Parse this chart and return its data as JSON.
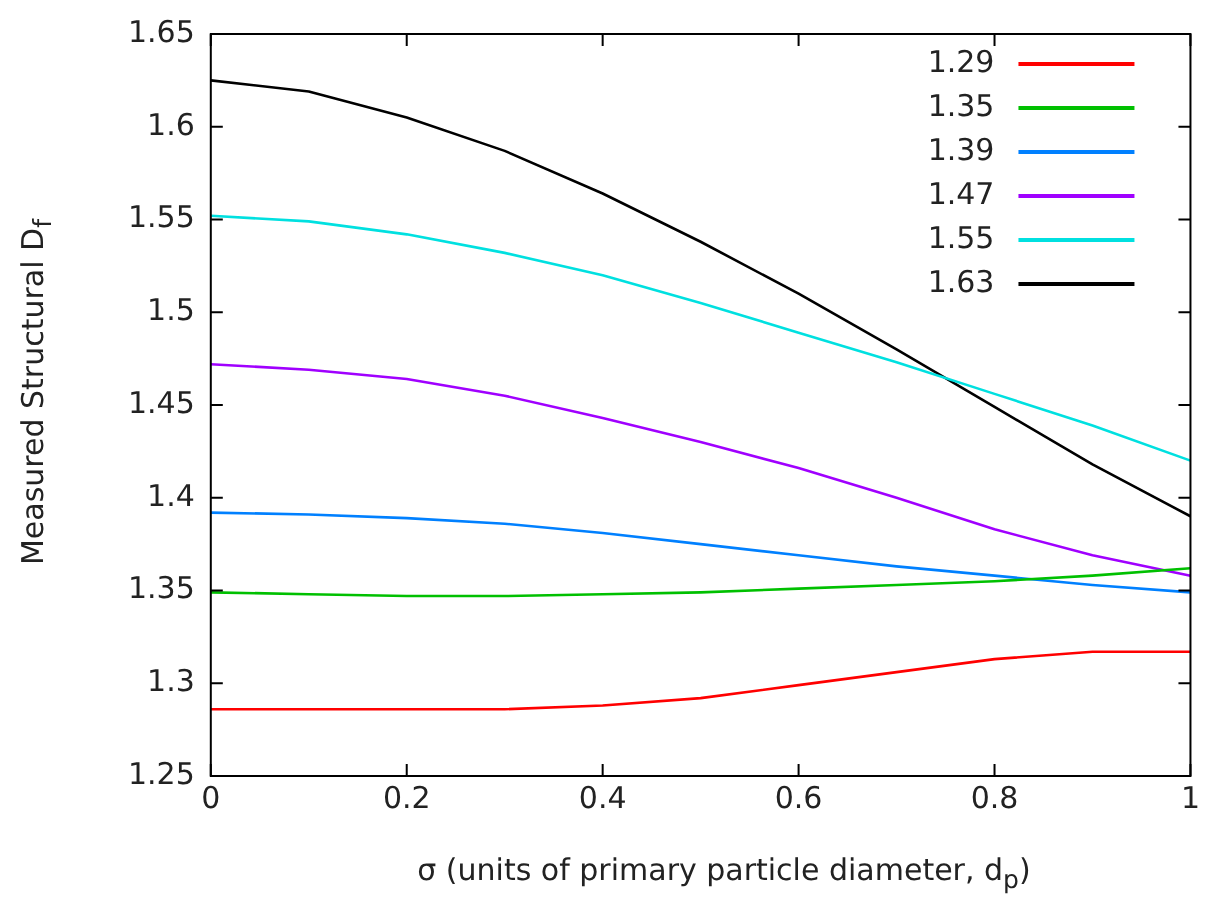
{
  "chart_data": {
    "type": "line",
    "xlabel": "σ (units of primary particle diameter, d$_{p}$)",
    "ylabel": "Measured Structural D$_{f}$",
    "x": [
      0,
      0.1,
      0.2,
      0.3,
      0.4,
      0.5,
      0.6,
      0.7,
      0.8,
      0.9,
      1
    ],
    "xlim": [
      0,
      1
    ],
    "xticks": [
      0,
      0.2,
      0.4,
      0.6,
      0.8,
      1
    ],
    "ylim": [
      1.25,
      1.65
    ],
    "yticks": [
      1.25,
      1.3,
      1.35,
      1.4,
      1.45,
      1.5,
      1.55,
      1.6,
      1.65
    ],
    "grid": false,
    "legend": "top right",
    "marker": "none",
    "line_style": "solid",
    "series": [
      {
        "name": "1.29",
        "color": "#ff0000",
        "values": [
          1.286,
          1.286,
          1.286,
          1.286,
          1.288,
          1.292,
          1.299,
          1.306,
          1.313,
          1.317,
          1.317
        ]
      },
      {
        "name": "1.35",
        "color": "#00c000",
        "values": [
          1.349,
          1.348,
          1.347,
          1.347,
          1.348,
          1.349,
          1.351,
          1.353,
          1.355,
          1.358,
          1.362
        ]
      },
      {
        "name": "1.39",
        "color": "#0080ff",
        "values": [
          1.392,
          1.391,
          1.389,
          1.386,
          1.381,
          1.375,
          1.369,
          1.363,
          1.358,
          1.353,
          1.349
        ]
      },
      {
        "name": "1.47",
        "color": "#a000ff",
        "values": [
          1.472,
          1.469,
          1.464,
          1.455,
          1.443,
          1.43,
          1.416,
          1.4,
          1.383,
          1.369,
          1.358
        ]
      },
      {
        "name": "1.55",
        "color": "#00e0e0",
        "values": [
          1.552,
          1.549,
          1.542,
          1.532,
          1.52,
          1.505,
          1.489,
          1.473,
          1.456,
          1.439,
          1.42
        ]
      },
      {
        "name": "1.63",
        "color": "#000000",
        "values": [
          1.625,
          1.619,
          1.605,
          1.587,
          1.564,
          1.538,
          1.51,
          1.48,
          1.449,
          1.418,
          1.39
        ]
      }
    ]
  }
}
